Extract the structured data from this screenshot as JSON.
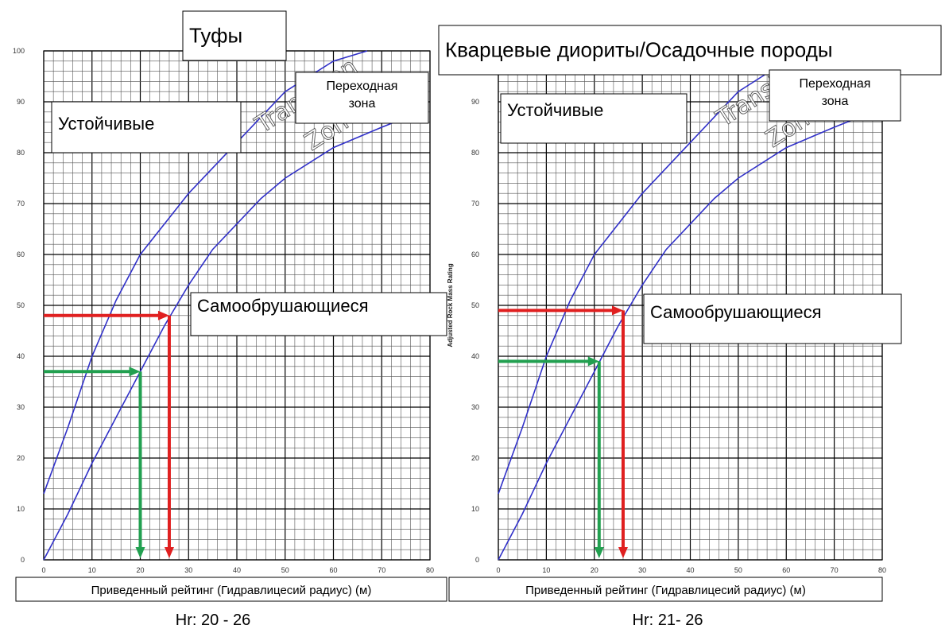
{
  "chart_data": [
    {
      "type": "line",
      "title": "Туфы",
      "xlabel": "Приведенный рейтинг (Гидравлицесий радиус) (м)",
      "ylabel": "",
      "xlim": [
        0,
        80
      ],
      "ylim": [
        0,
        100
      ],
      "x_ticks": [
        0,
        10,
        20,
        30,
        40,
        50,
        60,
        70,
        80
      ],
      "y_ticks": [
        0,
        10,
        20,
        30,
        40,
        50,
        60,
        70,
        80,
        90,
        100
      ],
      "grid": true,
      "series": [
        {
          "points": [
            [
              0,
              13
            ],
            [
              5,
              26
            ],
            [
              10,
              40
            ],
            [
              15,
              51
            ],
            [
              20,
              60
            ],
            [
              30,
              72
            ],
            [
              40,
              82
            ],
            [
              45,
              87
            ],
            [
              50,
              92
            ],
            [
              55,
              95
            ],
            [
              60,
              98
            ],
            [
              67,
              100
            ]
          ]
        },
        {
          "points": [
            [
              0,
              0
            ],
            [
              5,
              9
            ],
            [
              10,
              19
            ],
            [
              15,
              28
            ],
            [
              20,
              37
            ],
            [
              25,
              46
            ],
            [
              30,
              54
            ],
            [
              35,
              61
            ],
            [
              40,
              66
            ],
            [
              45,
              71
            ],
            [
              50,
              75
            ],
            [
              60,
              81
            ],
            [
              70,
              85
            ],
            [
              78,
              88
            ]
          ]
        }
      ],
      "arrows": [
        {
          "color": "#e02020",
          "x": 26,
          "y": 48
        },
        {
          "color": "#22a050",
          "x": 20,
          "y": 37
        }
      ],
      "zone_labels": {
        "upper": "Устойчивые",
        "lower": "Самообрушающиеся",
        "transition": "Переходная зона"
      },
      "ghost_labels": [
        "Transition",
        "Zone"
      ],
      "caption": "Hr: 20 - 26"
    },
    {
      "type": "line",
      "title": "Кварцевые диориты/Осадочные породы",
      "xlabel": "Приведенный рейтинг (Гидравлицесий радиус) (м)",
      "ylabel": "Adjusted Rock Mass Rating",
      "xlim": [
        0,
        80
      ],
      "ylim": [
        0,
        100
      ],
      "x_ticks": [
        0,
        10,
        20,
        30,
        40,
        50,
        60,
        70,
        80
      ],
      "y_ticks": [
        0,
        10,
        20,
        30,
        40,
        50,
        60,
        70,
        80,
        90
      ],
      "grid": true,
      "series": [
        {
          "points": [
            [
              0,
              13
            ],
            [
              5,
              26
            ],
            [
              10,
              40
            ],
            [
              15,
              51
            ],
            [
              20,
              60
            ],
            [
              30,
              72
            ],
            [
              40,
              82
            ],
            [
              45,
              87
            ],
            [
              50,
              92
            ],
            [
              55,
              95
            ],
            [
              60,
              98
            ],
            [
              67,
              100
            ]
          ]
        },
        {
          "points": [
            [
              0,
              0
            ],
            [
              5,
              9
            ],
            [
              10,
              19
            ],
            [
              15,
              28
            ],
            [
              20,
              37
            ],
            [
              25,
              46
            ],
            [
              30,
              54
            ],
            [
              35,
              61
            ],
            [
              40,
              66
            ],
            [
              45,
              71
            ],
            [
              50,
              75
            ],
            [
              60,
              81
            ],
            [
              70,
              85
            ],
            [
              78,
              88
            ]
          ]
        }
      ],
      "arrows": [
        {
          "color": "#e02020",
          "x": 26,
          "y": 49
        },
        {
          "color": "#22a050",
          "x": 21,
          "y": 39
        }
      ],
      "zone_labels": {
        "upper": "Устойчивые",
        "lower": "Самообрушающиеся",
        "transition": "Переходная зона"
      },
      "ghost_labels": [
        "Transition",
        "Zone"
      ],
      "caption": "Hr: 21- 26"
    }
  ],
  "colors": {
    "curve": "#3030c8",
    "grid_major": "#000000",
    "grid_minor": "#555555"
  }
}
